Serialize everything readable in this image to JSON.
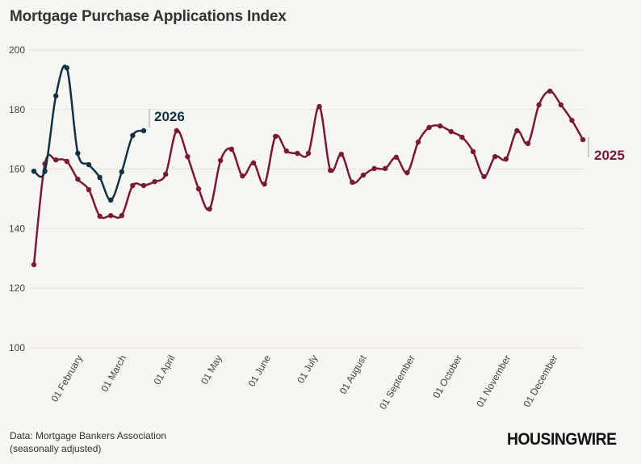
{
  "title": "Mortgage Purchase Applications Index",
  "source": {
    "line1": "Data: Mortgage Bankers Association",
    "line2": "(seasonally adjusted)"
  },
  "logo": "HOUSINGWIRE",
  "chart_data": {
    "type": "line",
    "title": "Mortgage Purchase Applications Index",
    "ylim": [
      100,
      200
    ],
    "yticks": [
      100,
      120,
      140,
      160,
      180,
      200
    ],
    "grid": true,
    "xticks": [
      {
        "date": "02-01",
        "label": "01 February"
      },
      {
        "date": "03-01",
        "label": "01 March"
      },
      {
        "date": "04-01",
        "label": "01 April"
      },
      {
        "date": "05-01",
        "label": "01 May"
      },
      {
        "date": "06-01",
        "label": "01 June"
      },
      {
        "date": "07-01",
        "label": "01 July"
      },
      {
        "date": "08-01",
        "label": "01 August"
      },
      {
        "date": "09-01",
        "label": "01 September"
      },
      {
        "date": "10-01",
        "label": "01 October"
      },
      {
        "date": "11-01",
        "label": "01 November"
      },
      {
        "date": "12-01",
        "label": "01 December"
      }
    ],
    "series": [
      {
        "name": "2025",
        "color": "#7a1a30",
        "x": [
          "01-03",
          "01-10",
          "01-17",
          "01-24",
          "01-31",
          "02-07",
          "02-14",
          "02-21",
          "02-28",
          "03-07",
          "03-14",
          "03-21",
          "03-28",
          "04-04",
          "04-11",
          "04-18",
          "04-25",
          "05-02",
          "05-09",
          "05-16",
          "05-23",
          "05-30",
          "06-06",
          "06-13",
          "06-20",
          "06-27",
          "07-04",
          "07-11",
          "07-18",
          "07-25",
          "08-01",
          "08-08",
          "08-15",
          "08-22",
          "08-29",
          "09-05",
          "09-12",
          "09-19",
          "09-26",
          "10-03",
          "10-10",
          "10-17",
          "10-24",
          "10-31",
          "11-07",
          "11-14",
          "11-21",
          "11-28",
          "12-05",
          "12-12",
          "12-19"
        ],
        "y": [
          127.9,
          161.8,
          163.1,
          162.6,
          156.6,
          153.1,
          144.2,
          144.4,
          144.4,
          154.5,
          154.5,
          155.8,
          158.3,
          172.9,
          164.2,
          153.4,
          146.6,
          162.9,
          166.7,
          157.7,
          162.1,
          155.0,
          171.0,
          166.1,
          165.3,
          165.3,
          181.0,
          159.6,
          165.0,
          155.6,
          158.0,
          160.2,
          160.2,
          164.0,
          158.8,
          169.1,
          174.0,
          174.5,
          172.6,
          170.7,
          165.9,
          157.5,
          164.2,
          163.4,
          172.9,
          168.6,
          181.6,
          186.2,
          181.6,
          176.4,
          169.9
        ]
      },
      {
        "name": "2026",
        "color": "#0f3344",
        "x": [
          "01-03",
          "01-10",
          "01-17",
          "01-24",
          "01-31",
          "02-07",
          "02-14",
          "02-21",
          "02-28",
          "03-07",
          "03-14"
        ],
        "y": [
          159.3,
          159.3,
          184.6,
          194.0,
          165.3,
          161.5,
          157.2,
          149.6,
          159.1,
          171.3,
          172.9
        ]
      }
    ]
  }
}
